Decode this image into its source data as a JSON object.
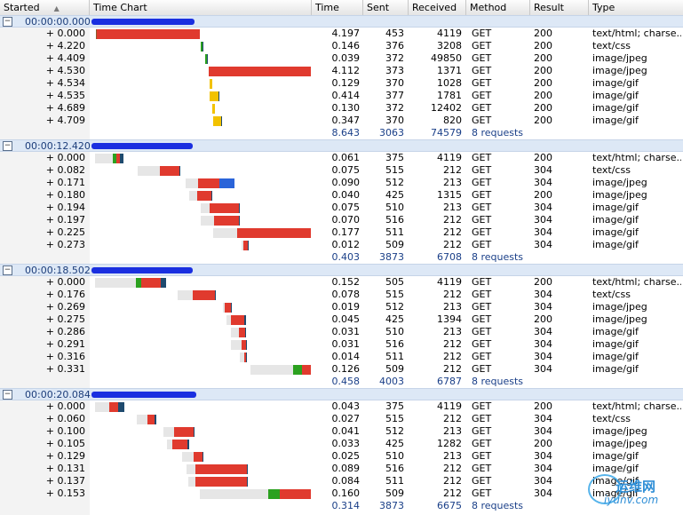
{
  "header": {
    "columns": [
      "Started",
      "Time Chart",
      "Time",
      "Sent",
      "Received",
      "Method",
      "Result",
      "Type"
    ],
    "sort_indicator": "▲"
  },
  "colors": {
    "wait": "#e6e6e6",
    "connect": "#2ba11f",
    "ssl": "#1e4a6e",
    "send": "#8b5a2b",
    "receive": "#e03a2e",
    "cache": "#2a64d9",
    "gif_bar": "#f2c200"
  },
  "groups": [
    {
      "started": "00:00:00.000",
      "rows": [
        {
          "offset": "+ 0.000",
          "time": "4.197",
          "sent": "453",
          "received": "4119",
          "method": "GET",
          "result": "200",
          "type": "text/html; charse..."
        },
        {
          "offset": "+ 4.220",
          "time": "0.146",
          "sent": "376",
          "received": "3208",
          "method": "GET",
          "result": "200",
          "type": "text/css"
        },
        {
          "offset": "+ 4.409",
          "time": "0.039",
          "sent": "372",
          "received": "49850",
          "method": "GET",
          "result": "200",
          "type": "image/jpeg"
        },
        {
          "offset": "+ 4.530",
          "time": "4.112",
          "sent": "373",
          "received": "1371",
          "method": "GET",
          "result": "200",
          "type": "image/jpeg"
        },
        {
          "offset": "+ 4.534",
          "time": "0.129",
          "sent": "370",
          "received": "1028",
          "method": "GET",
          "result": "200",
          "type": "image/gif"
        },
        {
          "offset": "+ 4.535",
          "time": "0.414",
          "sent": "377",
          "received": "1781",
          "method": "GET",
          "result": "200",
          "type": "image/gif"
        },
        {
          "offset": "+ 4.689",
          "time": "0.130",
          "sent": "372",
          "received": "12402",
          "method": "GET",
          "result": "200",
          "type": "image/gif"
        },
        {
          "offset": "+ 4.709",
          "time": "0.347",
          "sent": "370",
          "received": "820",
          "method": "GET",
          "result": "200",
          "type": "image/gif"
        }
      ],
      "summary": {
        "time": "8.643",
        "sent": "3063",
        "received": "74579",
        "requests": "8 requests"
      }
    },
    {
      "started": "00:00:12.420",
      "rows": [
        {
          "offset": "+ 0.000",
          "time": "0.061",
          "sent": "375",
          "received": "4119",
          "method": "GET",
          "result": "200",
          "type": "text/html; charse..."
        },
        {
          "offset": "+ 0.082",
          "time": "0.075",
          "sent": "515",
          "received": "212",
          "method": "GET",
          "result": "304",
          "type": "text/css"
        },
        {
          "offset": "+ 0.171",
          "time": "0.090",
          "sent": "512",
          "received": "213",
          "method": "GET",
          "result": "304",
          "type": "image/jpeg"
        },
        {
          "offset": "+ 0.180",
          "time": "0.040",
          "sent": "425",
          "received": "1315",
          "method": "GET",
          "result": "200",
          "type": "image/jpeg"
        },
        {
          "offset": "+ 0.194",
          "time": "0.075",
          "sent": "510",
          "received": "213",
          "method": "GET",
          "result": "304",
          "type": "image/gif"
        },
        {
          "offset": "+ 0.197",
          "time": "0.070",
          "sent": "516",
          "received": "212",
          "method": "GET",
          "result": "304",
          "type": "image/gif"
        },
        {
          "offset": "+ 0.225",
          "time": "0.177",
          "sent": "511",
          "received": "212",
          "method": "GET",
          "result": "304",
          "type": "image/gif"
        },
        {
          "offset": "+ 0.273",
          "time": "0.012",
          "sent": "509",
          "received": "212",
          "method": "GET",
          "result": "304",
          "type": "image/gif"
        }
      ],
      "summary": {
        "time": "0.403",
        "sent": "3873",
        "received": "6708",
        "requests": "8 requests"
      }
    },
    {
      "started": "00:00:18.502",
      "rows": [
        {
          "offset": "+ 0.000",
          "time": "0.152",
          "sent": "505",
          "received": "4119",
          "method": "GET",
          "result": "200",
          "type": "text/html; charse..."
        },
        {
          "offset": "+ 0.176",
          "time": "0.078",
          "sent": "515",
          "received": "212",
          "method": "GET",
          "result": "304",
          "type": "text/css"
        },
        {
          "offset": "+ 0.269",
          "time": "0.019",
          "sent": "512",
          "received": "213",
          "method": "GET",
          "result": "304",
          "type": "image/jpeg"
        },
        {
          "offset": "+ 0.275",
          "time": "0.045",
          "sent": "425",
          "received": "1394",
          "method": "GET",
          "result": "200",
          "type": "image/jpeg"
        },
        {
          "offset": "+ 0.286",
          "time": "0.031",
          "sent": "510",
          "received": "213",
          "method": "GET",
          "result": "304",
          "type": "image/gif"
        },
        {
          "offset": "+ 0.291",
          "time": "0.031",
          "sent": "516",
          "received": "212",
          "method": "GET",
          "result": "304",
          "type": "image/gif"
        },
        {
          "offset": "+ 0.316",
          "time": "0.014",
          "sent": "511",
          "received": "212",
          "method": "GET",
          "result": "304",
          "type": "image/gif"
        },
        {
          "offset": "+ 0.331",
          "time": "0.126",
          "sent": "509",
          "received": "212",
          "method": "GET",
          "result": "304",
          "type": "image/gif"
        }
      ],
      "summary": {
        "time": "0.458",
        "sent": "4003",
        "received": "6787",
        "requests": "8 requests"
      }
    },
    {
      "started": "00:00:20.084",
      "rows": [
        {
          "offset": "+ 0.000",
          "time": "0.043",
          "sent": "375",
          "received": "4119",
          "method": "GET",
          "result": "200",
          "type": "text/html; charse..."
        },
        {
          "offset": "+ 0.060",
          "time": "0.027",
          "sent": "515",
          "received": "212",
          "method": "GET",
          "result": "304",
          "type": "text/css"
        },
        {
          "offset": "+ 0.100",
          "time": "0.041",
          "sent": "512",
          "received": "213",
          "method": "GET",
          "result": "304",
          "type": "image/jpeg"
        },
        {
          "offset": "+ 0.105",
          "time": "0.033",
          "sent": "425",
          "received": "1282",
          "method": "GET",
          "result": "200",
          "type": "image/jpeg"
        },
        {
          "offset": "+ 0.129",
          "time": "0.025",
          "sent": "510",
          "received": "213",
          "method": "GET",
          "result": "304",
          "type": "image/gif"
        },
        {
          "offset": "+ 0.131",
          "time": "0.089",
          "sent": "516",
          "received": "212",
          "method": "GET",
          "result": "304",
          "type": "image/gif"
        },
        {
          "offset": "+ 0.137",
          "time": "0.084",
          "sent": "511",
          "received": "212",
          "method": "GET",
          "result": "304",
          "type": "image/gif"
        },
        {
          "offset": "+ 0.153",
          "time": "0.160",
          "sent": "509",
          "received": "212",
          "method": "GET",
          "result": "304",
          "type": "image/gif"
        }
      ],
      "summary": {
        "time": "0.314",
        "sent": "3873",
        "received": "6675",
        "requests": "8 requests"
      }
    }
  ],
  "watermark": {
    "text": "运维网",
    "url": "iyunv.com"
  }
}
